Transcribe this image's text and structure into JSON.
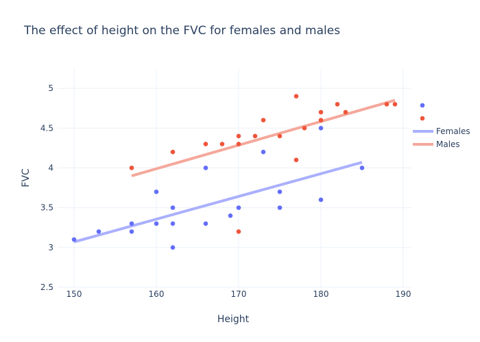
{
  "chart_data": {
    "type": "scatter",
    "title": "The effect of height on the FVC for females and males",
    "xlabel": "Height",
    "ylabel": "FVC",
    "xlim": [
      148,
      191
    ],
    "ylim": [
      2.5,
      5.25
    ],
    "xticks": [
      150,
      160,
      170,
      180,
      190
    ],
    "yticks": [
      2.5,
      3,
      3.5,
      4,
      4.5,
      5
    ],
    "ytick_labels": [
      "2.5",
      "3",
      "3.5",
      "4",
      "4.5",
      "5"
    ],
    "grid": true,
    "legend_position": "right",
    "series": [
      {
        "name": "Females",
        "color": "#636efa",
        "trend_color": "#aab0fc",
        "points": [
          {
            "x": 150,
            "y": 3.1
          },
          {
            "x": 153,
            "y": 3.2
          },
          {
            "x": 157,
            "y": 3.3
          },
          {
            "x": 157,
            "y": 3.2
          },
          {
            "x": 160,
            "y": 3.7
          },
          {
            "x": 160,
            "y": 3.3
          },
          {
            "x": 162,
            "y": 3.5
          },
          {
            "x": 162,
            "y": 3.3
          },
          {
            "x": 162,
            "y": 3.0
          },
          {
            "x": 166,
            "y": 4.0
          },
          {
            "x": 166,
            "y": 3.3
          },
          {
            "x": 169,
            "y": 3.4
          },
          {
            "x": 170,
            "y": 3.5
          },
          {
            "x": 173,
            "y": 4.2
          },
          {
            "x": 175,
            "y": 3.7
          },
          {
            "x": 175,
            "y": 3.5
          },
          {
            "x": 180,
            "y": 4.5
          },
          {
            "x": 180,
            "y": 3.6
          },
          {
            "x": 185,
            "y": 4.0
          }
        ],
        "trendline": [
          {
            "x": 150,
            "y": 3.07
          },
          {
            "x": 185,
            "y": 4.07
          }
        ]
      },
      {
        "name": "Males",
        "color": "#ef553b",
        "trend_color": "#f4a89b",
        "points": [
          {
            "x": 157,
            "y": 4.0
          },
          {
            "x": 162,
            "y": 4.2
          },
          {
            "x": 166,
            "y": 4.3
          },
          {
            "x": 168,
            "y": 4.3
          },
          {
            "x": 170,
            "y": 4.4
          },
          {
            "x": 170,
            "y": 4.3
          },
          {
            "x": 170,
            "y": 3.2
          },
          {
            "x": 172,
            "y": 4.4
          },
          {
            "x": 173,
            "y": 4.6
          },
          {
            "x": 175,
            "y": 4.4
          },
          {
            "x": 177,
            "y": 4.9
          },
          {
            "x": 177,
            "y": 4.1
          },
          {
            "x": 178,
            "y": 4.5
          },
          {
            "x": 180,
            "y": 4.7
          },
          {
            "x": 180,
            "y": 4.6
          },
          {
            "x": 182,
            "y": 4.8
          },
          {
            "x": 183,
            "y": 4.7
          },
          {
            "x": 188,
            "y": 4.8
          },
          {
            "x": 189,
            "y": 4.8
          }
        ],
        "trendline": [
          {
            "x": 157,
            "y": 3.9
          },
          {
            "x": 189,
            "y": 4.85
          }
        ]
      }
    ]
  }
}
